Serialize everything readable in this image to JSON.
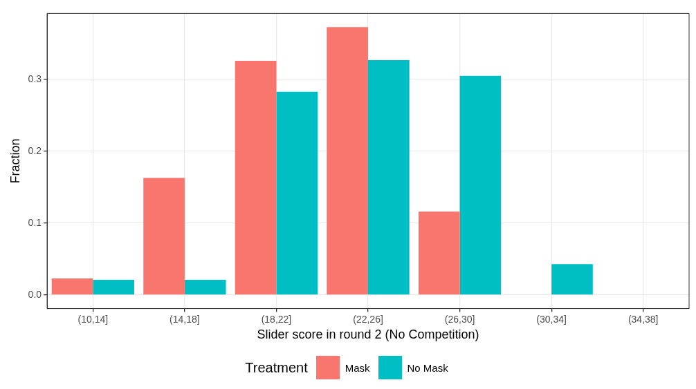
{
  "chart_data": {
    "type": "bar",
    "xlabel": "Slider score in round 2 (No Competition)",
    "ylabel": "Fraction",
    "legend_title": "Treatment",
    "categories": [
      "(10,14]",
      "(14,18]",
      "(18,22]",
      "(22,26]",
      "(26,30]",
      "(30,34]",
      "(34,38]"
    ],
    "series": [
      {
        "name": "Mask",
        "color": "#f8766d",
        "values": [
          0.023,
          0.163,
          0.326,
          0.373,
          0.116,
          0,
          0
        ]
      },
      {
        "name": "No Mask",
        "color": "#00bfc4",
        "values": [
          0.021,
          0.021,
          0.283,
          0.327,
          0.305,
          0.043,
          0
        ]
      }
    ],
    "ylim": [
      -0.019,
      0.392
    ],
    "yticks": [
      {
        "value": 0,
        "label": "0.0"
      },
      {
        "value": 0.1,
        "label": "0.1"
      },
      {
        "value": 0.2,
        "label": "0.2"
      },
      {
        "value": 0.3,
        "label": "0.3"
      }
    ],
    "grid": true,
    "legend": "bottom"
  }
}
